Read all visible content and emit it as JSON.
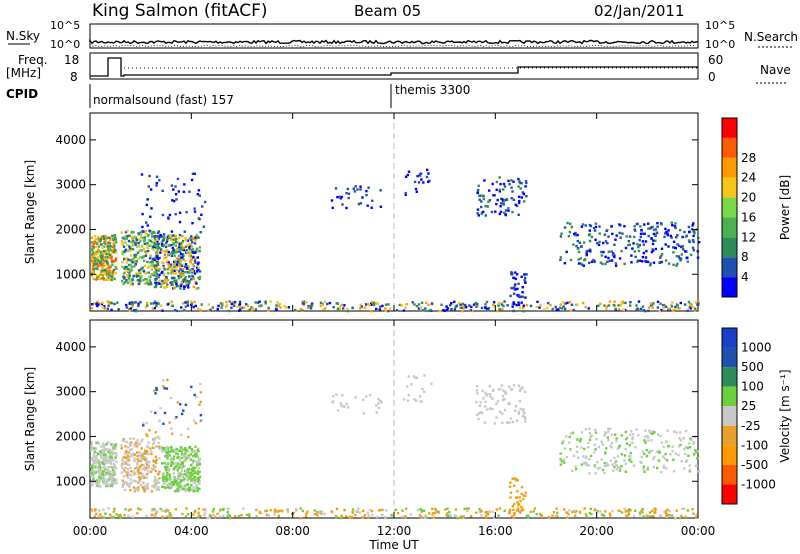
{
  "header": {
    "station": "King Salmon (fitACF)",
    "beam": "Beam 05",
    "date": "02/Jan/2011"
  },
  "labels": {
    "nsky": "N.Sky",
    "nsearch": "N.Search",
    "freq_line1": "Freq.",
    "freq_line2": "[MHz]",
    "nave": "Nave",
    "cpid": "CPID",
    "cpid_mode1": "normalsound (fast) 157",
    "cpid_mode2": "themis 3300",
    "noise_ticks_left": [
      "10^5",
      "10^0"
    ],
    "noise_ticks_right": [
      "10^5",
      "10^0"
    ],
    "freq_ticks": [
      "18",
      "8"
    ],
    "nave_ticks": [
      "60",
      "0"
    ]
  },
  "colors": {
    "power": [
      "#0000ff",
      "#1f4fb0",
      "#2e8b57",
      "#4caf50",
      "#7cd64a",
      "#f5c518",
      "#ff9a00",
      "#ff5a00",
      "#ff0000"
    ],
    "velocity": [
      "#1c3fc8",
      "#1f4fb0",
      "#2e8b57",
      "#6ccf3c",
      "#c8c8c8",
      "#e8a02a",
      "#ff9a00",
      "#ff5a00",
      "#ff0000"
    ]
  },
  "chart_data": [
    {
      "type": "heatmap",
      "title": "",
      "xlabel": "Time UT",
      "ylabel": "Slant Range [km]",
      "xlim": [
        0,
        24
      ],
      "ylim": [
        180,
        4600
      ],
      "x_ticks": [
        "00:00",
        "04:00",
        "08:00",
        "12:00",
        "16:00",
        "20:00",
        "00:00"
      ],
      "y_ticks": [
        "1000",
        "2000",
        "3000",
        "4000"
      ],
      "colorbar_label": "Power [dB]",
      "colorbar_ticks": [
        "4",
        "8",
        "12",
        "16",
        "20",
        "24",
        "28"
      ],
      "cpid_change_hour": 12
    },
    {
      "type": "heatmap",
      "title": "",
      "xlabel": "Time UT",
      "ylabel": "Slant Range [km]",
      "xlim": [
        0,
        24
      ],
      "ylim": [
        180,
        4600
      ],
      "x_ticks": [
        "00:00",
        "04:00",
        "08:00",
        "12:00",
        "16:00",
        "20:00",
        "00:00"
      ],
      "y_ticks": [
        "1000",
        "2000",
        "3000",
        "4000"
      ],
      "colorbar_label": "Velocity [m s⁻¹]",
      "colorbar_ticks": [
        "1000",
        "500",
        "100",
        "25",
        "-25",
        "-100",
        "-500",
        "-1000"
      ],
      "cpid_change_hour": 12
    }
  ],
  "xaxis_title": "Time UT"
}
